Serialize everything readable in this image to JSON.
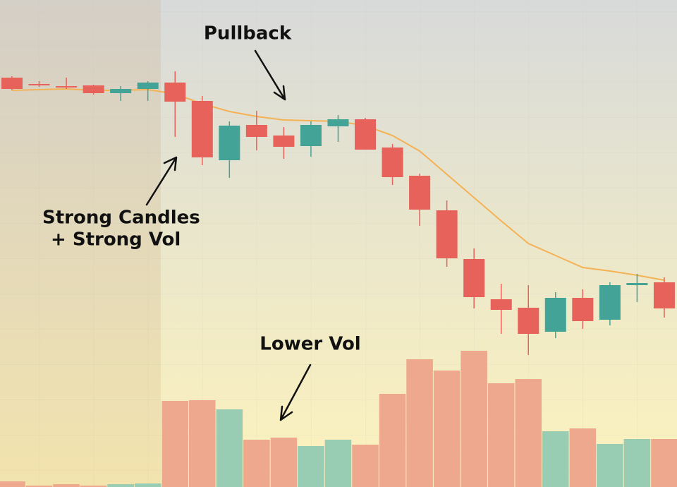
{
  "chart_data": {
    "type": "candlestick",
    "open": [
      580,
      571,
      568,
      569,
      558,
      564,
      573,
      547,
      463,
      513,
      498,
      483,
      511,
      521,
      481,
      441,
      392,
      323,
      266,
      254,
      220,
      268,
      237,
      286,
      290
    ],
    "high": [
      582,
      575,
      580,
      570,
      568,
      575,
      589,
      554,
      518,
      533,
      510,
      518,
      527,
      523,
      486,
      444,
      406,
      338,
      288,
      286,
      276,
      280,
      290,
      302,
      297
    ],
    "low": [
      562,
      567,
      564,
      556,
      547,
      547,
      496,
      456,
      438,
      477,
      465,
      468,
      489,
      478,
      428,
      370,
      312,
      253,
      217,
      187,
      211,
      224,
      229,
      262,
      240
    ],
    "close": [
      564,
      569,
      566,
      558,
      564,
      573,
      546,
      467,
      512,
      496,
      482,
      513,
      521,
      478,
      439,
      393,
      324,
      269,
      251,
      217,
      268,
      235,
      286,
      289,
      253
    ],
    "moving_average": [
      562,
      563,
      564,
      562,
      562,
      563,
      557,
      543,
      532,
      525,
      520,
      519,
      518,
      512,
      498,
      476,
      443,
      410,
      377,
      345,
      328,
      311,
      306,
      300,
      293
    ],
    "volume": [
      8,
      2,
      4,
      2,
      4,
      5,
      122,
      123,
      110,
      67,
      70,
      58,
      67,
      60,
      132,
      181,
      165,
      193,
      147,
      153,
      79,
      83,
      61,
      68,
      68
    ],
    "ylim": [
      0,
      690
    ],
    "y2lim": [
      0,
      690
    ],
    "up_color": "#43a397",
    "down_color": "#e6625a",
    "volume_up_color": "#98ccb3",
    "volume_down_color": "#eea88d",
    "ma_color": "#f4b255",
    "annotations": [
      {
        "text": "Pullback"
      },
      {
        "text": "Strong Candles"
      },
      {
        "text": "+ Strong Vol"
      },
      {
        "text": "Lower Vol"
      }
    ]
  }
}
